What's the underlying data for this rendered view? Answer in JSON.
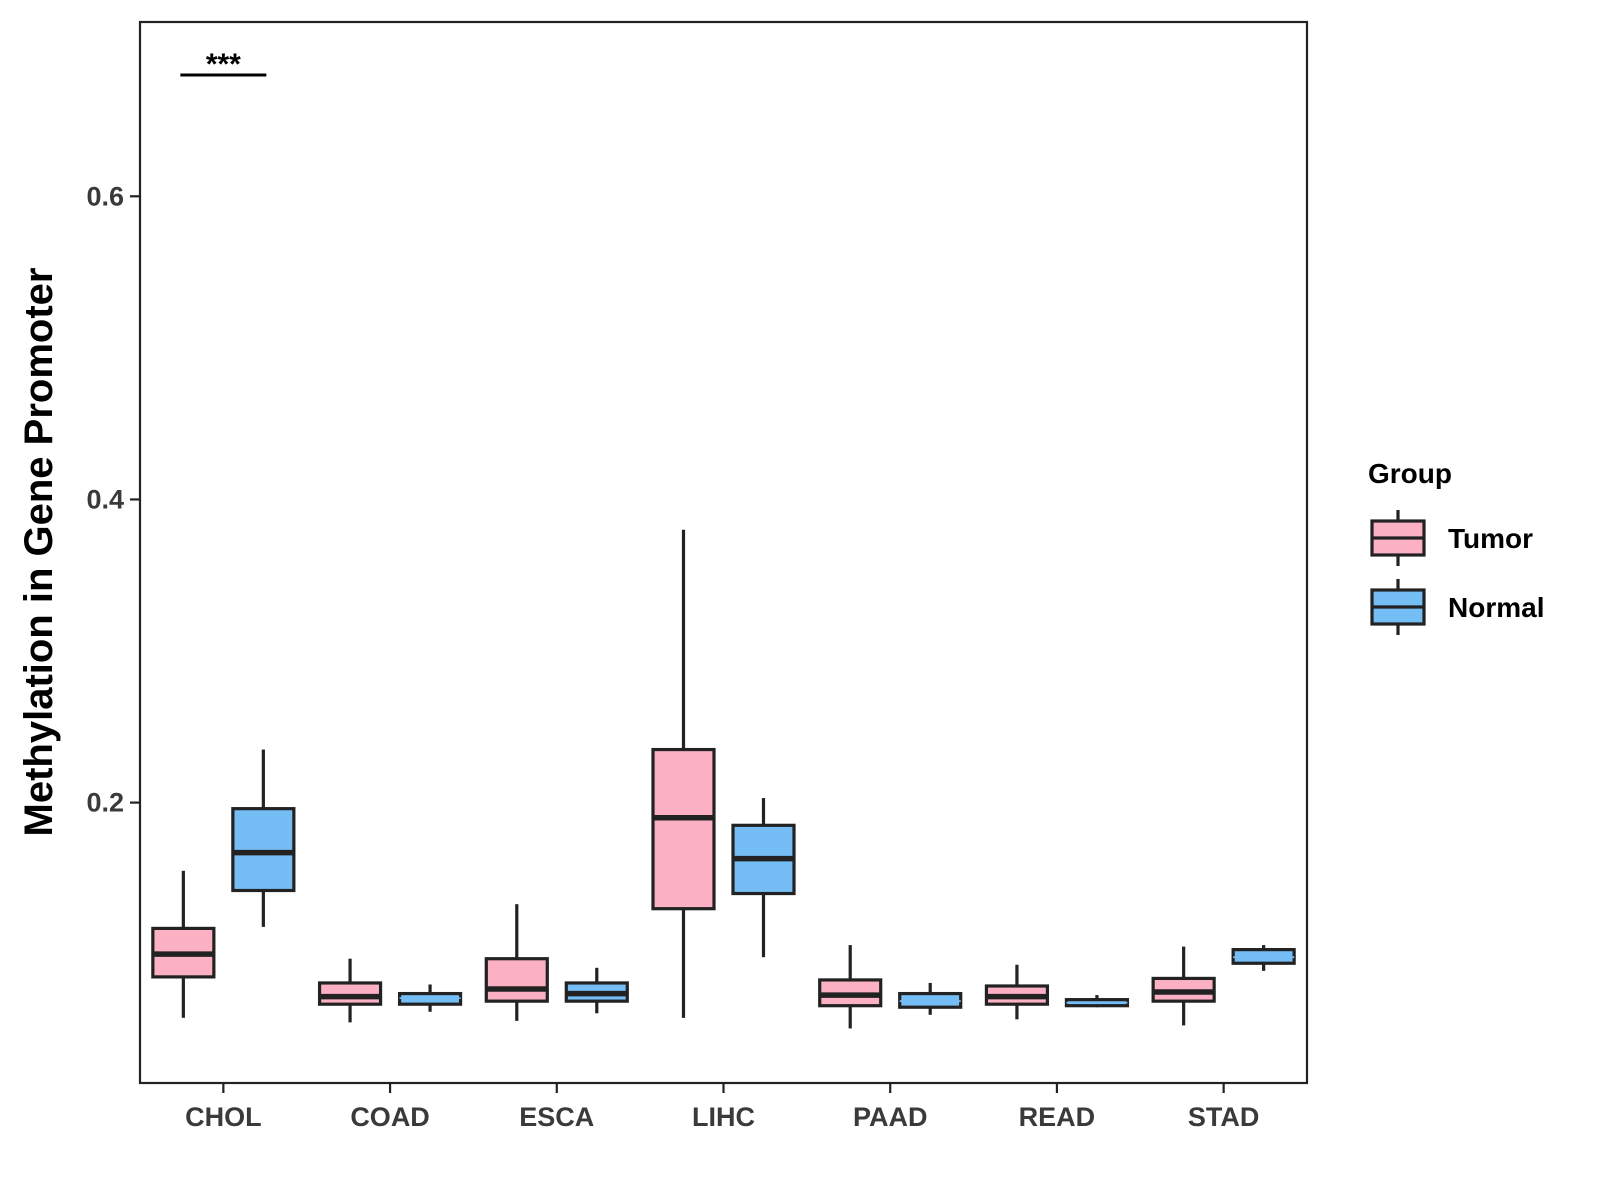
{
  "chart_data": {
    "type": "boxplot",
    "title": "",
    "xlabel": "",
    "ylabel": "Methylation in Gene Promoter",
    "ylim": [
      0.015,
      0.715
    ],
    "yticks": [
      0.2,
      0.4,
      0.6
    ],
    "ytick_labels": [
      "0.2",
      "0.4",
      "0.6"
    ],
    "categories": [
      "CHOL",
      "COAD",
      "ESCA",
      "LIHC",
      "PAAD",
      "READ",
      "STAD"
    ],
    "legend": {
      "title": "Group",
      "position": "right",
      "entries": [
        {
          "name": "Tumor",
          "color": "#FBB0C3"
        },
        {
          "name": "Normal",
          "color": "#74BDF5"
        }
      ]
    },
    "series": [
      {
        "name": "Tumor",
        "color": "#FBB0C3",
        "boxes": [
          {
            "min": 0.058,
            "q1": 0.085,
            "median": 0.1,
            "q3": 0.117,
            "max": 0.155
          },
          {
            "min": 0.055,
            "q1": 0.067,
            "median": 0.072,
            "q3": 0.081,
            "max": 0.097
          },
          {
            "min": 0.056,
            "q1": 0.069,
            "median": 0.077,
            "q3": 0.097,
            "max": 0.133
          },
          {
            "min": 0.058,
            "q1": 0.13,
            "median": 0.19,
            "q3": 0.235,
            "max": 0.38
          },
          {
            "min": 0.051,
            "q1": 0.066,
            "median": 0.073,
            "q3": 0.083,
            "max": 0.106
          },
          {
            "min": 0.057,
            "q1": 0.067,
            "median": 0.072,
            "q3": 0.079,
            "max": 0.093
          },
          {
            "min": 0.053,
            "q1": 0.069,
            "median": 0.075,
            "q3": 0.084,
            "max": 0.105
          }
        ]
      },
      {
        "name": "Normal",
        "color": "#74BDF5",
        "boxes": [
          {
            "min": 0.118,
            "q1": 0.142,
            "median": 0.167,
            "q3": 0.196,
            "max": 0.235
          },
          {
            "min": 0.062,
            "q1": 0.067,
            "median": 0.071,
            "q3": 0.074,
            "max": 0.08
          },
          {
            "min": 0.061,
            "q1": 0.069,
            "median": 0.074,
            "q3": 0.081,
            "max": 0.091
          },
          {
            "min": 0.098,
            "q1": 0.14,
            "median": 0.163,
            "q3": 0.185,
            "max": 0.203
          },
          {
            "min": 0.06,
            "q1": 0.065,
            "median": 0.069,
            "q3": 0.074,
            "max": 0.081
          },
          {
            "min": 0.065,
            "q1": 0.066,
            "median": 0.068,
            "q3": 0.07,
            "max": 0.073
          },
          {
            "min": 0.089,
            "q1": 0.094,
            "median": 0.098,
            "q3": 0.103,
            "max": 0.106
          }
        ]
      }
    ],
    "annotations": [
      {
        "text": "***",
        "category": "CHOL",
        "y": 0.68
      }
    ]
  }
}
